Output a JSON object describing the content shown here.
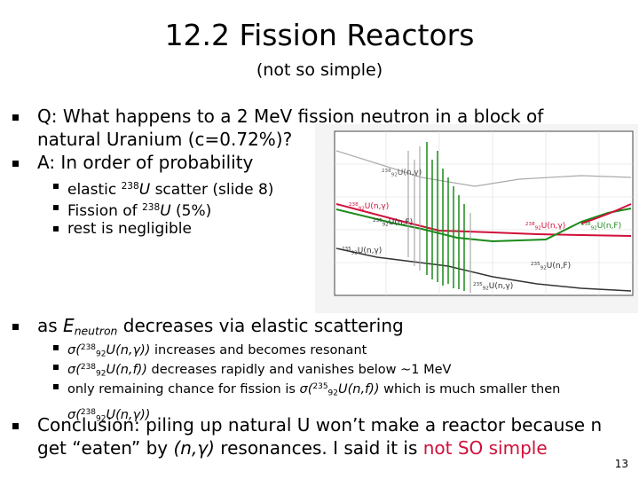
{
  "header": {
    "title": "12.2 Fission Reactors",
    "subtitle": "(not so simple)"
  },
  "bullets": [
    {
      "segments": [
        {
          "text": "Q: What happens to a 2 MeV fission neutron in a block of natural Uranium (c=0.72%)?"
        }
      ]
    },
    {
      "segments": [
        {
          "text": "A: In order of probability"
        }
      ],
      "sub": [
        {
          "segments": [
            {
              "text": "elastic "
            },
            {
              "text": "238",
              "style": "sup"
            },
            {
              "text": "U",
              "style": "italic"
            },
            {
              "text": " scatter (slide 8)"
            }
          ]
        },
        {
          "segments": [
            {
              "text": "Fission of "
            },
            {
              "text": "238",
              "style": "sup"
            },
            {
              "text": "U",
              "style": "italic"
            },
            {
              "text": " (5%)"
            }
          ]
        },
        {
          "segments": [
            {
              "text": "rest is negligible"
            }
          ]
        }
      ]
    },
    {
      "segments": [
        {
          "text": "as "
        },
        {
          "text": "E",
          "style": "italic"
        },
        {
          "text": "neutron",
          "style": "sub-italic"
        },
        {
          "text": " decreases via elastic scattering"
        }
      ],
      "sub": [
        {
          "segments": [
            {
              "text": "σ(",
              "style": "italic"
            },
            {
              "text": "238",
              "style": "sup"
            },
            {
              "text": "92",
              "style": "sub"
            },
            {
              "text": "U(n,γ))",
              "style": "italic"
            },
            {
              "text": " increases and becomes resonant"
            }
          ]
        },
        {
          "segments": [
            {
              "text": "σ(",
              "style": "italic"
            },
            {
              "text": "238",
              "style": "sup"
            },
            {
              "text": "92",
              "style": "sub"
            },
            {
              "text": "U(n,f))",
              "style": "italic"
            },
            {
              "text": " decreases rapidly and vanishes below ~1 MeV"
            }
          ]
        },
        {
          "segments": [
            {
              "text": "only remaining chance for fission is "
            },
            {
              "text": "σ(",
              "style": "italic"
            },
            {
              "text": "235",
              "style": "sup"
            },
            {
              "text": "92",
              "style": "sub"
            },
            {
              "text": "U(n,f))",
              "style": "italic"
            },
            {
              "text": " which is much smaller then "
            },
            {
              "text": "σ(",
              "style": "italic"
            },
            {
              "text": "238",
              "style": "sup"
            },
            {
              "text": "92",
              "style": "sub"
            },
            {
              "text": "U(n,γ))",
              "style": "italic"
            }
          ]
        }
      ]
    },
    {
      "segments": [
        {
          "text": "Conclusion: piling up natural U won’t make a reactor because n get “eaten” by "
        },
        {
          "text": "(n,γ)",
          "style": "italic"
        },
        {
          "text": " resonances. I said it is "
        },
        {
          "text": "not SO simple",
          "style": "red"
        }
      ]
    }
  ],
  "figure": {
    "labels": [
      {
        "mass": "238",
        "z": "92",
        "reaction": "U(n,γ)",
        "color": "#555555"
      },
      {
        "mass": "238",
        "z": "92",
        "reaction": "U(n,γ)",
        "color": "#d0103a"
      },
      {
        "mass": "235",
        "z": "92",
        "reaction": "U(n,F)",
        "color": "#333333"
      },
      {
        "mass": "238",
        "z": "92",
        "reaction": "U(n,γ)",
        "color": "#d0103a"
      },
      {
        "mass": "238",
        "z": "92",
        "reaction": "U(n,F)",
        "color": "#1a8a1a"
      },
      {
        "mass": "235",
        "z": "92",
        "reaction": "U(n,γ)",
        "color": "#333333"
      },
      {
        "mass": "235",
        "z": "92",
        "reaction": "U(n,F)",
        "color": "#333333"
      },
      {
        "mass": "235",
        "z": "92",
        "reaction": "U(n,γ)",
        "color": "#333333"
      }
    ]
  },
  "footer": {
    "page": "13"
  }
}
